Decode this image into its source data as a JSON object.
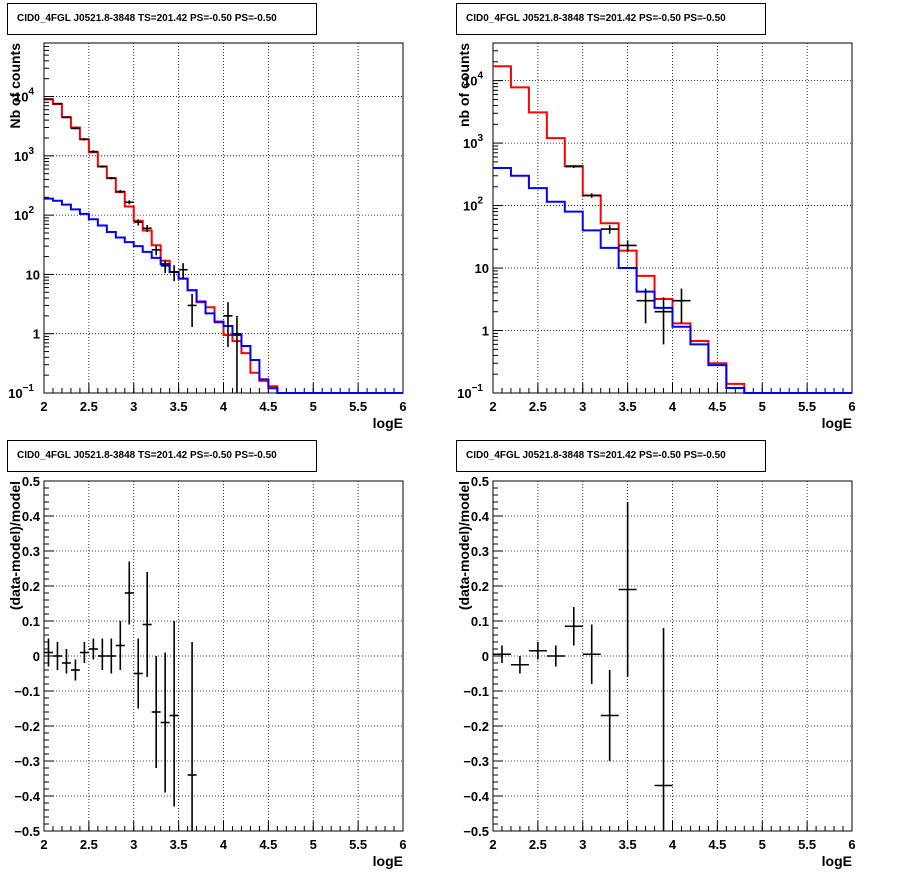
{
  "chart_data": [
    {
      "type": "line",
      "title": "CID0_4FGL J0521.8-3848 TS=201.42 PS=-0.50 PS=-0.50",
      "xlabel": "logE",
      "ylabel": "Nb of counts",
      "yscale": "log",
      "xlim": [
        2,
        6
      ],
      "ylim": [
        0.1,
        80000
      ],
      "xticks": [
        "2",
        "2.5",
        "3",
        "3.5",
        "4",
        "4.5",
        "5",
        "5.5",
        "6"
      ],
      "yticks": [
        {
          "v": 0.1,
          "b": "10",
          "e": "−1"
        },
        {
          "v": 1,
          "b": "1",
          "e": ""
        },
        {
          "v": 10,
          "b": "10",
          "e": ""
        },
        {
          "v": 100,
          "b": "10",
          "e": "2"
        },
        {
          "v": 1000,
          "b": "10",
          "e": "3"
        },
        {
          "v": 10000,
          "b": "10",
          "e": "4"
        }
      ],
      "grid": true,
      "bin_edges": [
        2.0,
        2.1,
        2.2,
        2.3,
        2.4,
        2.5,
        2.6,
        2.7,
        2.8,
        2.9,
        3.0,
        3.1,
        3.2,
        3.3,
        3.4,
        3.5,
        3.6,
        3.7,
        3.8,
        3.9,
        4.0,
        4.1,
        4.2,
        4.3,
        4.4,
        4.5,
        4.6,
        4.7,
        4.8,
        4.9,
        5.0,
        5.1,
        5.2,
        5.3,
        5.4,
        5.5,
        5.6,
        5.7,
        5.8,
        5.9,
        6.0
      ],
      "series": [
        {
          "color": "#ff0000",
          "style": "step",
          "values": [
            9000,
            7500,
            4500,
            3000,
            1900,
            1150,
            660,
            420,
            245,
            140,
            80,
            55,
            31,
            17,
            11,
            8.5,
            5.4,
            3.4,
            2.8,
            1.55,
            0.95,
            0.75,
            0.47,
            0.22,
            0.16,
            0.13,
            0.1,
            0.1,
            0.1,
            0.1,
            0.1,
            0.1,
            0.1,
            0.1,
            0.1,
            0.1,
            0.1,
            0.1,
            0.1,
            0.1
          ]
        },
        {
          "color": "#0000ff",
          "style": "step",
          "values": [
            190,
            175,
            150,
            125,
            105,
            85,
            67,
            52,
            42,
            35,
            30,
            24,
            19,
            15,
            11,
            8.5,
            5.4,
            3.5,
            2.2,
            1.6,
            1.35,
            0.95,
            0.62,
            0.36,
            0.17,
            0.12,
            0.1,
            0.1,
            0.1,
            0.1,
            0.1,
            0.1,
            0.1,
            0.1,
            0.1,
            0.1,
            0.1,
            0.1,
            0.1,
            0.1
          ]
        },
        {
          "color": "#000000",
          "style": "errorbar",
          "points": [
            {
              "x": 2.05,
              "y": 9000,
              "lo": 8800,
              "hi": 9200
            },
            {
              "x": 2.15,
              "y": 7600,
              "lo": 7420,
              "hi": 7780
            },
            {
              "x": 2.25,
              "y": 4450,
              "lo": 4320,
              "hi": 4580
            },
            {
              "x": 2.35,
              "y": 2900,
              "lo": 2800,
              "hi": 3000
            },
            {
              "x": 2.45,
              "y": 1900,
              "lo": 1820,
              "hi": 1980
            },
            {
              "x": 2.55,
              "y": 1180,
              "lo": 1120,
              "hi": 1240
            },
            {
              "x": 2.65,
              "y": 660,
              "lo": 630,
              "hi": 690
            },
            {
              "x": 2.75,
              "y": 420,
              "lo": 400,
              "hi": 440
            },
            {
              "x": 2.85,
              "y": 250,
              "lo": 234,
              "hi": 266
            },
            {
              "x": 2.95,
              "y": 165,
              "lo": 152,
              "hi": 178
            },
            {
              "x": 3.05,
              "y": 76,
              "lo": 67,
              "hi": 85
            },
            {
              "x": 3.15,
              "y": 60,
              "lo": 52,
              "hi": 68
            },
            {
              "x": 3.25,
              "y": 26,
              "lo": 21,
              "hi": 31
            },
            {
              "x": 3.35,
              "y": 14,
              "lo": 10.5,
              "hi": 17.5
            },
            {
              "x": 3.45,
              "y": 11,
              "lo": 7.7,
              "hi": 14.3
            },
            {
              "x": 3.55,
              "y": 12,
              "lo": 8.5,
              "hi": 15.5
            },
            {
              "x": 3.65,
              "y": 3.0,
              "lo": 1.3,
              "hi": 4.7
            },
            {
              "x": 4.05,
              "y": 2.0,
              "lo": 0.6,
              "hi": 3.4
            },
            {
              "x": 4.15,
              "y": 1.0,
              "lo": 0.1,
              "hi": 2.0
            }
          ]
        }
      ]
    },
    {
      "type": "line",
      "title": "CID0_4FGL J0521.8-3848 TS=201.42 PS=-0.50 PS=-0.50",
      "xlabel": "logE",
      "ylabel": "nb of counts",
      "yscale": "log",
      "xlim": [
        2,
        6
      ],
      "ylim": [
        0.1,
        40000
      ],
      "xticks": [
        "2",
        "2.5",
        "3",
        "3.5",
        "4",
        "4.5",
        "5",
        "5.5",
        "6"
      ],
      "yticks": [
        {
          "v": 0.1,
          "b": "10",
          "e": "−1"
        },
        {
          "v": 1,
          "b": "1",
          "e": ""
        },
        {
          "v": 10,
          "b": "10",
          "e": ""
        },
        {
          "v": 100,
          "b": "10",
          "e": "2"
        },
        {
          "v": 1000,
          "b": "10",
          "e": "3"
        },
        {
          "v": 10000,
          "b": "10",
          "e": "4"
        }
      ],
      "grid": true,
      "bin_edges": [
        2.0,
        2.2,
        2.4,
        2.6,
        2.8,
        3.0,
        3.2,
        3.4,
        3.6,
        3.8,
        4.0,
        4.2,
        4.4,
        4.6,
        4.8,
        5.0,
        5.2,
        5.4,
        5.6,
        5.8,
        6.0
      ],
      "series": [
        {
          "color": "#ff0000",
          "style": "step",
          "values": [
            17000,
            7800,
            3100,
            1200,
            430,
            145,
            52,
            19,
            7.5,
            3.2,
            1.3,
            0.68,
            0.3,
            0.14,
            0.1,
            0.1,
            0.1,
            0.1,
            0.1,
            0.1
          ]
        },
        {
          "color": "#0000ff",
          "style": "step",
          "values": [
            400,
            300,
            190,
            115,
            80,
            40,
            21,
            10,
            4.2,
            2.3,
            1.15,
            0.6,
            0.28,
            0.12,
            0.1,
            0.1,
            0.1,
            0.1,
            0.1,
            0.1
          ]
        },
        {
          "color": "#000000",
          "style": "errorbar",
          "points": [
            {
              "x": 2.9,
              "y": 420,
              "lo": 400,
              "hi": 440
            },
            {
              "x": 3.1,
              "y": 145,
              "lo": 133,
              "hi": 157
            },
            {
              "x": 3.3,
              "y": 42,
              "lo": 35.5,
              "hi": 48.5
            },
            {
              "x": 3.5,
              "y": 23,
              "lo": 18.2,
              "hi": 27.8
            },
            {
              "x": 3.7,
              "y": 3.0,
              "lo": 1.3,
              "hi": 4.7
            },
            {
              "x": 3.9,
              "y": 2.0,
              "lo": 0.6,
              "hi": 3.4
            },
            {
              "x": 4.1,
              "y": 3.0,
              "lo": 1.3,
              "hi": 4.7
            }
          ]
        }
      ]
    },
    {
      "type": "scatter",
      "title": "CID0_4FGL J0521.8-3848 TS=201.42 PS=-0.50 PS=-0.50",
      "xlabel": "logE",
      "ylabel": "(data-model)/model",
      "yscale": "linear",
      "xlim": [
        2,
        6
      ],
      "ylim": [
        -0.5,
        0.5
      ],
      "xticks": [
        "2",
        "2.5",
        "3",
        "3.5",
        "4",
        "4.5",
        "5",
        "5.5",
        "6"
      ],
      "yticks": [
        "−0.5",
        "−0.4",
        "−0.3",
        "−0.2",
        "−0.1",
        "0",
        "0.1",
        "0.2",
        "0.3",
        "0.4",
        "0.5"
      ],
      "grid": true,
      "series": [
        {
          "color": "#000000",
          "style": "errorbar",
          "halfwidth": 0.05,
          "points": [
            {
              "x": 2.05,
              "y": 0.01,
              "lo": -0.03,
              "hi": 0.05
            },
            {
              "x": 2.15,
              "y": 0.0,
              "lo": -0.04,
              "hi": 0.04
            },
            {
              "x": 2.25,
              "y": -0.02,
              "lo": -0.05,
              "hi": 0.02
            },
            {
              "x": 2.35,
              "y": -0.04,
              "lo": -0.07,
              "hi": -0.01
            },
            {
              "x": 2.45,
              "y": 0.01,
              "lo": -0.02,
              "hi": 0.04
            },
            {
              "x": 2.55,
              "y": 0.02,
              "lo": -0.01,
              "hi": 0.05
            },
            {
              "x": 2.65,
              "y": 0.0,
              "lo": -0.04,
              "hi": 0.05
            },
            {
              "x": 2.75,
              "y": 0.0,
              "lo": -0.05,
              "hi": 0.05
            },
            {
              "x": 2.85,
              "y": 0.03,
              "lo": -0.04,
              "hi": 0.1
            },
            {
              "x": 2.95,
              "y": 0.18,
              "lo": 0.09,
              "hi": 0.27
            },
            {
              "x": 3.05,
              "y": -0.05,
              "lo": -0.15,
              "hi": 0.05
            },
            {
              "x": 3.15,
              "y": 0.09,
              "lo": -0.06,
              "hi": 0.24
            },
            {
              "x": 3.25,
              "y": -0.16,
              "lo": -0.32,
              "hi": 0.0
            },
            {
              "x": 3.35,
              "y": -0.19,
              "lo": -0.39,
              "hi": 0.01
            },
            {
              "x": 3.45,
              "y": -0.17,
              "lo": -0.43,
              "hi": 0.1
            },
            {
              "x": 3.65,
              "y": -0.34,
              "lo": -0.5,
              "hi": 0.04
            }
          ]
        }
      ]
    },
    {
      "type": "scatter",
      "title": "CID0_4FGL J0521.8-3848 TS=201.42 PS=-0.50 PS=-0.50",
      "xlabel": "logE",
      "ylabel": "(data-model)/model",
      "yscale": "linear",
      "xlim": [
        2,
        6
      ],
      "ylim": [
        -0.5,
        0.5
      ],
      "xticks": [
        "2",
        "2.5",
        "3",
        "3.5",
        "4",
        "4.5",
        "5",
        "5.5",
        "6"
      ],
      "yticks": [
        "−0.5",
        "−0.4",
        "−0.3",
        "−0.2",
        "−0.1",
        "0",
        "0.1",
        "0.2",
        "0.3",
        "0.4",
        "0.5"
      ],
      "grid": true,
      "series": [
        {
          "color": "#000000",
          "style": "errorbar",
          "halfwidth": 0.1,
          "points": [
            {
              "x": 2.1,
              "y": 0.005,
              "lo": -0.02,
              "hi": 0.03
            },
            {
              "x": 2.3,
              "y": -0.025,
              "lo": -0.05,
              "hi": 0.0
            },
            {
              "x": 2.5,
              "y": 0.015,
              "lo": -0.01,
              "hi": 0.04
            },
            {
              "x": 2.7,
              "y": 0.0,
              "lo": -0.03,
              "hi": 0.03
            },
            {
              "x": 2.9,
              "y": 0.085,
              "lo": 0.03,
              "hi": 0.14
            },
            {
              "x": 3.1,
              "y": 0.005,
              "lo": -0.08,
              "hi": 0.09
            },
            {
              "x": 3.3,
              "y": -0.17,
              "lo": -0.3,
              "hi": -0.04
            },
            {
              "x": 3.5,
              "y": 0.19,
              "lo": -0.06,
              "hi": 0.44
            },
            {
              "x": 3.9,
              "y": -0.37,
              "lo": -0.5,
              "hi": 0.08
            }
          ]
        }
      ]
    }
  ]
}
